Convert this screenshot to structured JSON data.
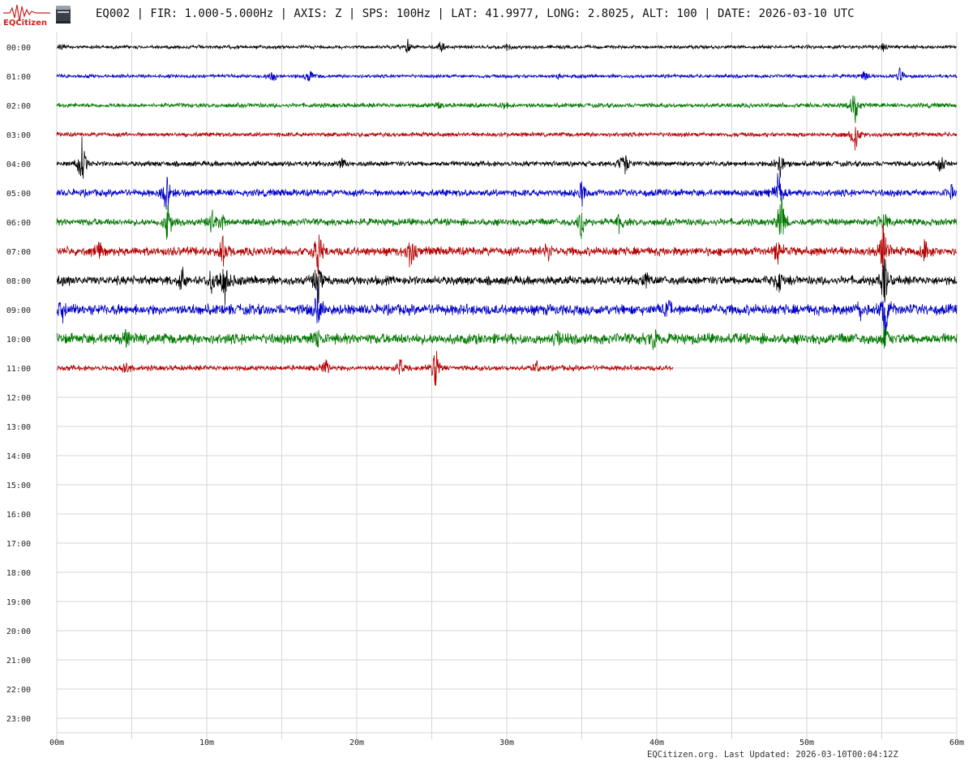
{
  "header": {
    "logo_text": "EQCitizen",
    "title": "EQ002 | FIR: 1.000-5.000Hz | AXIS: Z | SPS: 100Hz | LAT: 41.9977, LONG: 2.8025, ALT: 100 | DATE: 2026-03-10 UTC"
  },
  "footer": {
    "updated": "EQCitizen.org. Last Updated: 2026-03-10T00:04:12Z"
  },
  "chart_data": {
    "type": "line",
    "y_tick_labels": [
      "00:00",
      "01:00",
      "02:00",
      "03:00",
      "04:00",
      "05:00",
      "06:00",
      "07:00",
      "08:00",
      "09:00",
      "10:00",
      "11:00",
      "12:00",
      "13:00",
      "14:00",
      "15:00",
      "16:00",
      "17:00",
      "18:00",
      "19:00",
      "20:00",
      "21:00",
      "22:00",
      "23:00"
    ],
    "x_tick_labels": [
      "00m",
      "10m",
      "20m",
      "30m",
      "40m",
      "50m",
      "60m"
    ],
    "x_ticks": [
      0,
      10,
      20,
      30,
      40,
      50,
      60
    ],
    "xlim": [
      0,
      60
    ],
    "grid": true,
    "trace_colors": [
      "#000000",
      "#0000c8",
      "#007800",
      "#b40000"
    ],
    "rows": [
      {
        "hour": "00:00",
        "end_min": 60,
        "noise": 2,
        "events": [
          {
            "t": 0.3,
            "a": 4
          },
          {
            "t": 23.4,
            "a": 8
          },
          {
            "t": 25.6,
            "a": 9
          },
          {
            "t": 30,
            "a": 4
          },
          {
            "t": 55.1,
            "a": 6
          }
        ]
      },
      {
        "hour": "01:00",
        "end_min": 60,
        "noise": 2,
        "events": [
          {
            "t": 14.4,
            "a": 9
          },
          {
            "t": 16.8,
            "a": 12
          },
          {
            "t": 33.5,
            "a": 5
          },
          {
            "t": 53.9,
            "a": 8
          },
          {
            "t": 56.2,
            "a": 10
          }
        ]
      },
      {
        "hour": "02:00",
        "end_min": 60,
        "noise": 2.5,
        "events": [
          {
            "t": 25.5,
            "a": 5
          },
          {
            "t": 29.8,
            "a": 5
          },
          {
            "t": 53.2,
            "a": 30
          }
        ]
      },
      {
        "hour": "03:00",
        "end_min": 60,
        "noise": 2.5,
        "events": [
          {
            "t": 53.2,
            "a": 30
          }
        ]
      },
      {
        "hour": "04:00",
        "end_min": 60,
        "noise": 3,
        "events": [
          {
            "t": 1.7,
            "a": 36
          },
          {
            "t": 19,
            "a": 6
          },
          {
            "t": 37.8,
            "a": 26
          },
          {
            "t": 48.2,
            "a": 24
          },
          {
            "t": 58.9,
            "a": 18
          }
        ]
      },
      {
        "hour": "05:00",
        "end_min": 60,
        "noise": 4,
        "events": [
          {
            "t": 7.3,
            "a": 30
          },
          {
            "t": 35,
            "a": 18
          },
          {
            "t": 48.1,
            "a": 28
          },
          {
            "t": 59.6,
            "a": 10
          }
        ]
      },
      {
        "hour": "06:00",
        "end_min": 60,
        "noise": 4,
        "events": [
          {
            "t": 7.4,
            "a": 30
          },
          {
            "t": 10.4,
            "a": 16
          },
          {
            "t": 11,
            "a": 14
          },
          {
            "t": 35,
            "a": 30
          },
          {
            "t": 37.5,
            "a": 14
          },
          {
            "t": 48.3,
            "a": 40
          },
          {
            "t": 55.1,
            "a": 20
          }
        ]
      },
      {
        "hour": "07:00",
        "end_min": 60,
        "noise": 5,
        "events": [
          {
            "t": 2.8,
            "a": 12
          },
          {
            "t": 11.1,
            "a": 20
          },
          {
            "t": 17.4,
            "a": 40
          },
          {
            "t": 23.6,
            "a": 28
          },
          {
            "t": 32.7,
            "a": 16
          },
          {
            "t": 48.1,
            "a": 20
          },
          {
            "t": 55.1,
            "a": 40
          },
          {
            "t": 57.9,
            "a": 16
          }
        ]
      },
      {
        "hour": "08:00",
        "end_min": 60,
        "noise": 5,
        "events": [
          {
            "t": 0.3,
            "a": 10
          },
          {
            "t": 8.3,
            "a": 20
          },
          {
            "t": 10.3,
            "a": 18
          },
          {
            "t": 11.2,
            "a": 40
          },
          {
            "t": 17.4,
            "a": 30
          },
          {
            "t": 39.3,
            "a": 10
          },
          {
            "t": 48.1,
            "a": 20
          },
          {
            "t": 55.2,
            "a": 40
          }
        ]
      },
      {
        "hour": "09:00",
        "end_min": 60,
        "noise": 6,
        "events": [
          {
            "t": 0.4,
            "a": 14
          },
          {
            "t": 17.4,
            "a": 30
          },
          {
            "t": 40.8,
            "a": 10
          },
          {
            "t": 53.5,
            "a": 12
          },
          {
            "t": 55.2,
            "a": 50
          }
        ]
      },
      {
        "hour": "10:00",
        "end_min": 60,
        "noise": 6,
        "events": [
          {
            "t": 4.6,
            "a": 10
          },
          {
            "t": 17.4,
            "a": 16
          },
          {
            "t": 33.4,
            "a": 10
          },
          {
            "t": 39.8,
            "a": 14
          },
          {
            "t": 55.2,
            "a": 16
          }
        ]
      },
      {
        "hour": "11:00",
        "end_min": 41.1,
        "noise": 3,
        "events": [
          {
            "t": 4.6,
            "a": 14
          },
          {
            "t": 17.9,
            "a": 12
          },
          {
            "t": 22.9,
            "a": 14
          },
          {
            "t": 25.3,
            "a": 40
          },
          {
            "t": 32,
            "a": 8
          }
        ]
      }
    ]
  }
}
